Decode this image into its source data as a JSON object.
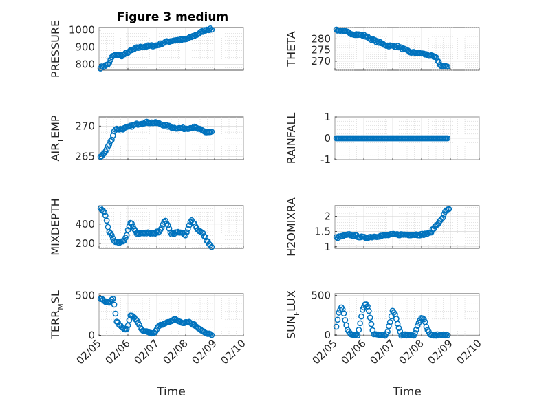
{
  "chart_data": {
    "type": "scatter",
    "title": "Figure 3 medium",
    "colors": {
      "series": "#0072BD",
      "axis": "#262626",
      "grid": "#d0d0d0"
    },
    "xaxis": {
      "label": "Time",
      "ticks": [
        "02/05",
        "02/06",
        "02/07",
        "02/08",
        "02/09",
        "02/10"
      ],
      "tick_rotation_deg": -45
    },
    "subplots": [
      {
        "id": "pressure",
        "ylabel": "PRESSURE",
        "ylim": [
          765,
          1015
        ],
        "yticks": [
          "800",
          "900",
          "1000"
        ],
        "keypoints": [
          [
            0.05,
            780
          ],
          [
            0.2,
            790
          ],
          [
            0.35,
            805
          ],
          [
            0.45,
            845
          ],
          [
            0.6,
            855
          ],
          [
            0.8,
            850
          ],
          [
            1.0,
            870
          ],
          [
            1.3,
            895
          ],
          [
            1.6,
            905
          ],
          [
            2.0,
            910
          ],
          [
            2.3,
            930
          ],
          [
            2.6,
            940
          ],
          [
            3.0,
            945
          ],
          [
            3.4,
            975
          ],
          [
            3.7,
            1003
          ],
          [
            3.9,
            1005
          ]
        ]
      },
      {
        "id": "theta",
        "ylabel": "THETA",
        "ylim": [
          266,
          285
        ],
        "yticks": [
          "270",
          "275",
          "280"
        ],
        "keypoints": [
          [
            0.05,
            284
          ],
          [
            0.4,
            283
          ],
          [
            0.6,
            282.2
          ],
          [
            1.0,
            281.5
          ],
          [
            1.4,
            279
          ],
          [
            1.8,
            277
          ],
          [
            2.2,
            276.5
          ],
          [
            2.6,
            274
          ],
          [
            3.0,
            273.5
          ],
          [
            3.3,
            272.5
          ],
          [
            3.5,
            271.5
          ],
          [
            3.7,
            267.5
          ],
          [
            3.9,
            267.8
          ]
        ]
      },
      {
        "id": "air_temp",
        "ylabel": "AIR_TEMP",
        "ylim": [
          264.5,
          271.5
        ],
        "yticks": [
          "265",
          "270"
        ],
        "keypoints": [
          [
            0.05,
            265
          ],
          [
            0.2,
            265.6
          ],
          [
            0.3,
            266.5
          ],
          [
            0.45,
            268
          ],
          [
            0.55,
            269.5
          ],
          [
            0.8,
            269.5
          ],
          [
            1.0,
            269.8
          ],
          [
            1.3,
            270.3
          ],
          [
            1.6,
            270.6
          ],
          [
            2.0,
            270.5
          ],
          [
            2.3,
            270.1
          ],
          [
            2.6,
            269.7
          ],
          [
            3.0,
            269.6
          ],
          [
            3.3,
            269.8
          ],
          [
            3.5,
            269.4
          ],
          [
            3.7,
            269.0
          ],
          [
            3.9,
            269.0
          ]
        ]
      },
      {
        "id": "rainfall",
        "ylabel": "RAINFALL",
        "ylim": [
          -1,
          1
        ],
        "yticks": [
          "-1",
          "0",
          "1"
        ],
        "keypoints": [
          [
            0.05,
            0
          ],
          [
            3.9,
            0
          ]
        ]
      },
      {
        "id": "mixdepth",
        "ylabel": "MIXDEPTH",
        "ylim": [
          150,
          590
        ],
        "yticks": [
          "200",
          "400"
        ],
        "keypoints": [
          [
            0.05,
            560
          ],
          [
            0.2,
            510
          ],
          [
            0.35,
            320
          ],
          [
            0.55,
            220
          ],
          [
            0.7,
            200
          ],
          [
            0.9,
            240
          ],
          [
            1.1,
            420
          ],
          [
            1.3,
            300
          ],
          [
            1.6,
            310
          ],
          [
            1.9,
            300
          ],
          [
            2.1,
            330
          ],
          [
            2.3,
            440
          ],
          [
            2.5,
            300
          ],
          [
            2.8,
            320
          ],
          [
            3.0,
            280
          ],
          [
            3.2,
            450
          ],
          [
            3.4,
            350
          ],
          [
            3.6,
            300
          ],
          [
            3.8,
            200
          ],
          [
            3.9,
            160
          ]
        ]
      },
      {
        "id": "h2omixra",
        "ylabel": "H2OMIXRA",
        "ylim": [
          0.95,
          2.35
        ],
        "yticks": [
          "1",
          "1.5",
          "2"
        ],
        "keypoints": [
          [
            0.05,
            1.3
          ],
          [
            0.5,
            1.4
          ],
          [
            1.0,
            1.3
          ],
          [
            1.5,
            1.35
          ],
          [
            2.0,
            1.4
          ],
          [
            2.5,
            1.4
          ],
          [
            3.0,
            1.4
          ],
          [
            3.3,
            1.45
          ],
          [
            3.5,
            1.7
          ],
          [
            3.7,
            1.9
          ],
          [
            3.85,
            2.2
          ],
          [
            3.95,
            2.25
          ]
        ]
      },
      {
        "id": "terr_msl",
        "ylabel": "TERR_MSL",
        "ylim": [
          -5,
          520
        ],
        "yticks": [
          "0",
          "500"
        ],
        "keypoints": [
          [
            0.05,
            460
          ],
          [
            0.2,
            420
          ],
          [
            0.35,
            400
          ],
          [
            0.5,
            460
          ],
          [
            0.6,
            180
          ],
          [
            0.8,
            90
          ],
          [
            0.95,
            60
          ],
          [
            1.1,
            270
          ],
          [
            1.3,
            180
          ],
          [
            1.5,
            60
          ],
          [
            1.7,
            40
          ],
          [
            1.9,
            20
          ],
          [
            2.05,
            110
          ],
          [
            2.3,
            150
          ],
          [
            2.6,
            200
          ],
          [
            2.9,
            160
          ],
          [
            3.1,
            170
          ],
          [
            3.3,
            130
          ],
          [
            3.5,
            80
          ],
          [
            3.7,
            20
          ],
          [
            3.9,
            10
          ]
        ]
      },
      {
        "id": "sun_flux",
        "ylabel": "SUN_FLUX",
        "ylim": [
          -10,
          520
        ],
        "yticks": [
          "0",
          "500"
        ],
        "keypoints": [
          [
            0.05,
            100
          ],
          [
            0.15,
            300
          ],
          [
            0.25,
            350
          ],
          [
            0.35,
            200
          ],
          [
            0.45,
            50
          ],
          [
            0.55,
            0
          ],
          [
            0.8,
            0
          ],
          [
            0.95,
            300
          ],
          [
            1.05,
            400
          ],
          [
            1.15,
            350
          ],
          [
            1.25,
            150
          ],
          [
            1.35,
            0
          ],
          [
            1.8,
            0
          ],
          [
            1.9,
            150
          ],
          [
            2.0,
            300
          ],
          [
            2.1,
            250
          ],
          [
            2.2,
            100
          ],
          [
            2.3,
            0
          ],
          [
            2.75,
            0
          ],
          [
            2.9,
            150
          ],
          [
            3.0,
            220
          ],
          [
            3.1,
            180
          ],
          [
            3.2,
            60
          ],
          [
            3.3,
            0
          ],
          [
            3.9,
            0
          ]
        ]
      }
    ]
  }
}
